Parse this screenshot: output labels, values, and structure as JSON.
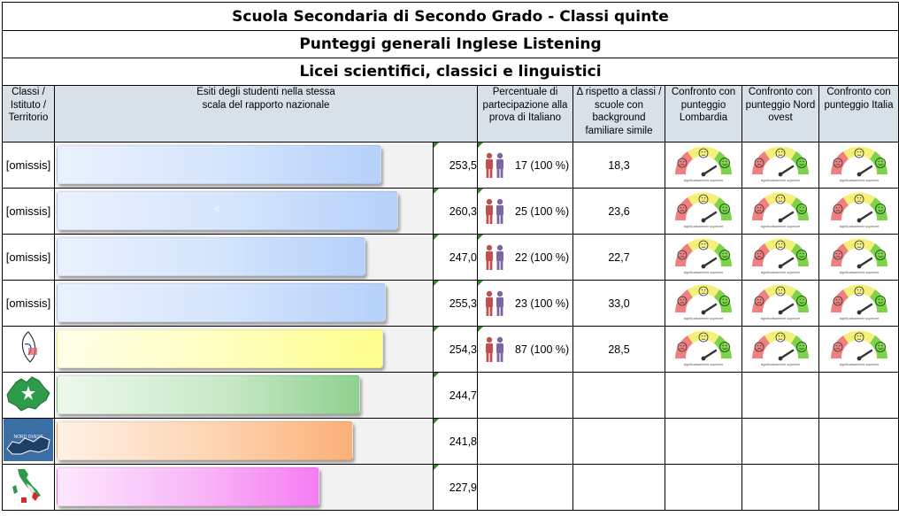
{
  "titles": {
    "line1": "Scuola Secondaria di Secondo Grado - Classi quinte",
    "line2": "Punteggi generali Inglese Listening",
    "line3": "Licei scientifici, classici e linguistici"
  },
  "headers": {
    "col1": "Classi / Istituto / Territorio",
    "col2": "Esiti degli studenti nella stessa scala del rapporto nazionale",
    "col3": "Percentuale di partecipazione alla prova di Italiano",
    "col4": "Δ rispetto a classi / scuole con background familiare simile",
    "col5": "Confronto con punteggio Lombardia",
    "col6": "Confronto con punteggio Nord ovest",
    "col7": "Confronto con punteggio Italia"
  },
  "gauge_caption": "significativamente superiore",
  "colors": {
    "header_bg": "#d9e1e8",
    "participation_icon_male": "#c0504d",
    "participation_icon_female": "#8064a2"
  },
  "rows": [
    {
      "label": "[omissis]",
      "score": "253,5",
      "score_value": 253.5,
      "participants": "17 (100 %)",
      "delta": "18,3",
      "bar_mark": "",
      "icon": "",
      "bar_color": "blue",
      "gauges": [
        0,
        0,
        0
      ]
    },
    {
      "label": "[omissis]",
      "score": "260,3",
      "score_value": 260.3,
      "participants": "25 (100 %)",
      "delta": "23,6",
      "bar_mark": "<",
      "icon": "",
      "bar_color": "blue",
      "gauges": [
        0,
        0,
        0
      ]
    },
    {
      "label": "[omissis]",
      "score": "247,0",
      "score_value": 247.0,
      "participants": "22 (100 %)",
      "delta": "22,7",
      "bar_mark": "",
      "icon": "",
      "bar_color": "blue",
      "gauges": [
        0,
        0,
        0
      ]
    },
    {
      "label": "[omissis]",
      "score": "255,3",
      "score_value": 255.3,
      "participants": "23 (100 %)",
      "delta": "33,0",
      "bar_mark": "",
      "icon": "",
      "bar_color": "blue",
      "gauges": [
        0,
        0,
        0
      ]
    },
    {
      "label": "",
      "score": "254,3",
      "score_value": 254.3,
      "participants": "87 (100 %)",
      "delta": "28,5",
      "bar_mark": "",
      "icon": "school-logo-icon",
      "bar_color": "yellow",
      "gauges": [
        0,
        0,
        0
      ]
    },
    {
      "label": "",
      "score": "244,7",
      "score_value": 244.7,
      "participants": "",
      "delta": "",
      "bar_mark": "",
      "icon": "lombardia-map-icon",
      "bar_color": "green",
      "gauges": []
    },
    {
      "label": "",
      "score": "241,8",
      "score_value": 241.8,
      "participants": "",
      "delta": "",
      "bar_mark": "",
      "icon": "nord-ovest-map-icon",
      "bar_color": "orange",
      "gauges": []
    },
    {
      "label": "",
      "score": "227,9",
      "score_value": 227.9,
      "participants": "",
      "delta": "",
      "bar_mark": "",
      "icon": "italia-map-icon",
      "bar_color": "pink",
      "gauges": []
    }
  ],
  "map_labels": {
    "nord_ovest": "NORD OVEST"
  }
}
